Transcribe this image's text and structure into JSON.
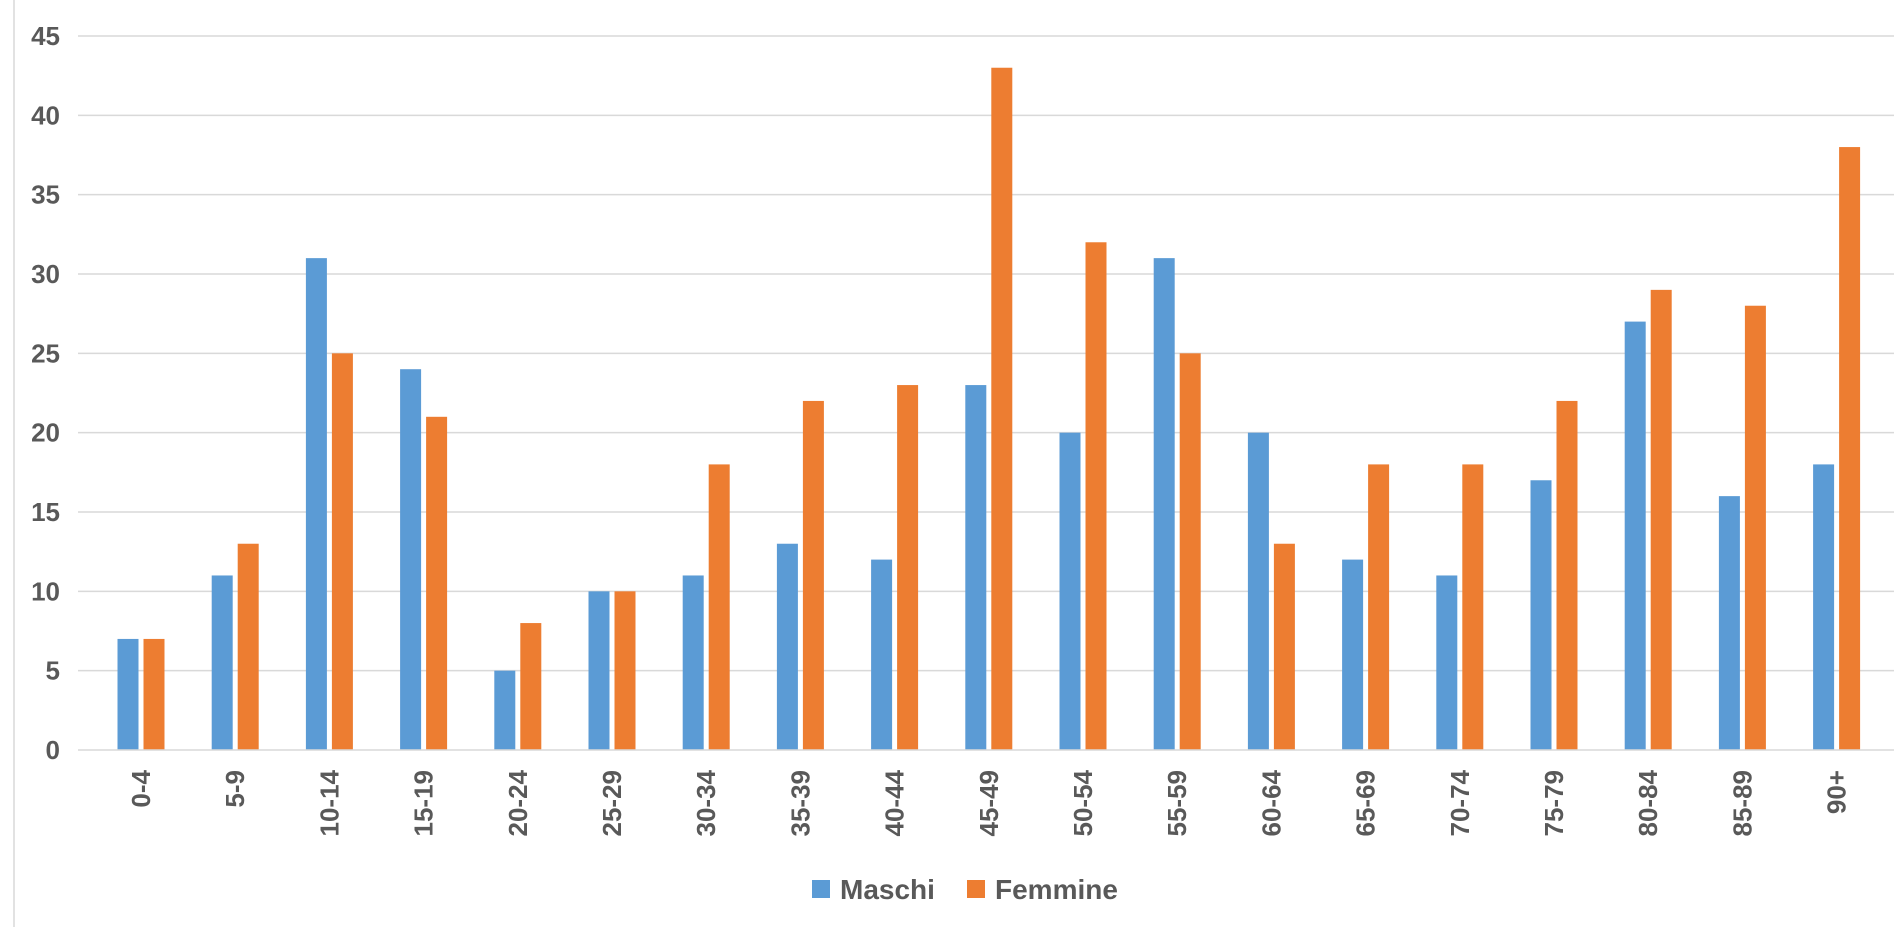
{
  "chart_data": {
    "type": "bar",
    "title": "",
    "xlabel": "",
    "ylabel": "",
    "categories": [
      "0-4",
      "5-9",
      "10-14",
      "15-19",
      "20-24",
      "25-29",
      "30-34",
      "35-39",
      "40-44",
      "45-49",
      "50-54",
      "55-59",
      "60-64",
      "65-69",
      "70-74",
      "75-79",
      "80-84",
      "85-89",
      "90+"
    ],
    "series": [
      {
        "name": "Maschi",
        "color": "#5B9BD5",
        "values": [
          7,
          11,
          31,
          24,
          5,
          10,
          11,
          13,
          12,
          23,
          20,
          31,
          20,
          12,
          11,
          17,
          27,
          16,
          18
        ]
      },
      {
        "name": "Femmine",
        "color": "#ED7D31",
        "values": [
          7,
          13,
          25,
          21,
          8,
          10,
          18,
          22,
          23,
          43,
          32,
          25,
          13,
          18,
          18,
          22,
          29,
          28,
          38
        ]
      }
    ],
    "ylim": [
      0,
      45
    ],
    "yticks": [
      0,
      5,
      10,
      15,
      20,
      25,
      30,
      35,
      40,
      45
    ],
    "grid": true,
    "legend": "bottom"
  }
}
